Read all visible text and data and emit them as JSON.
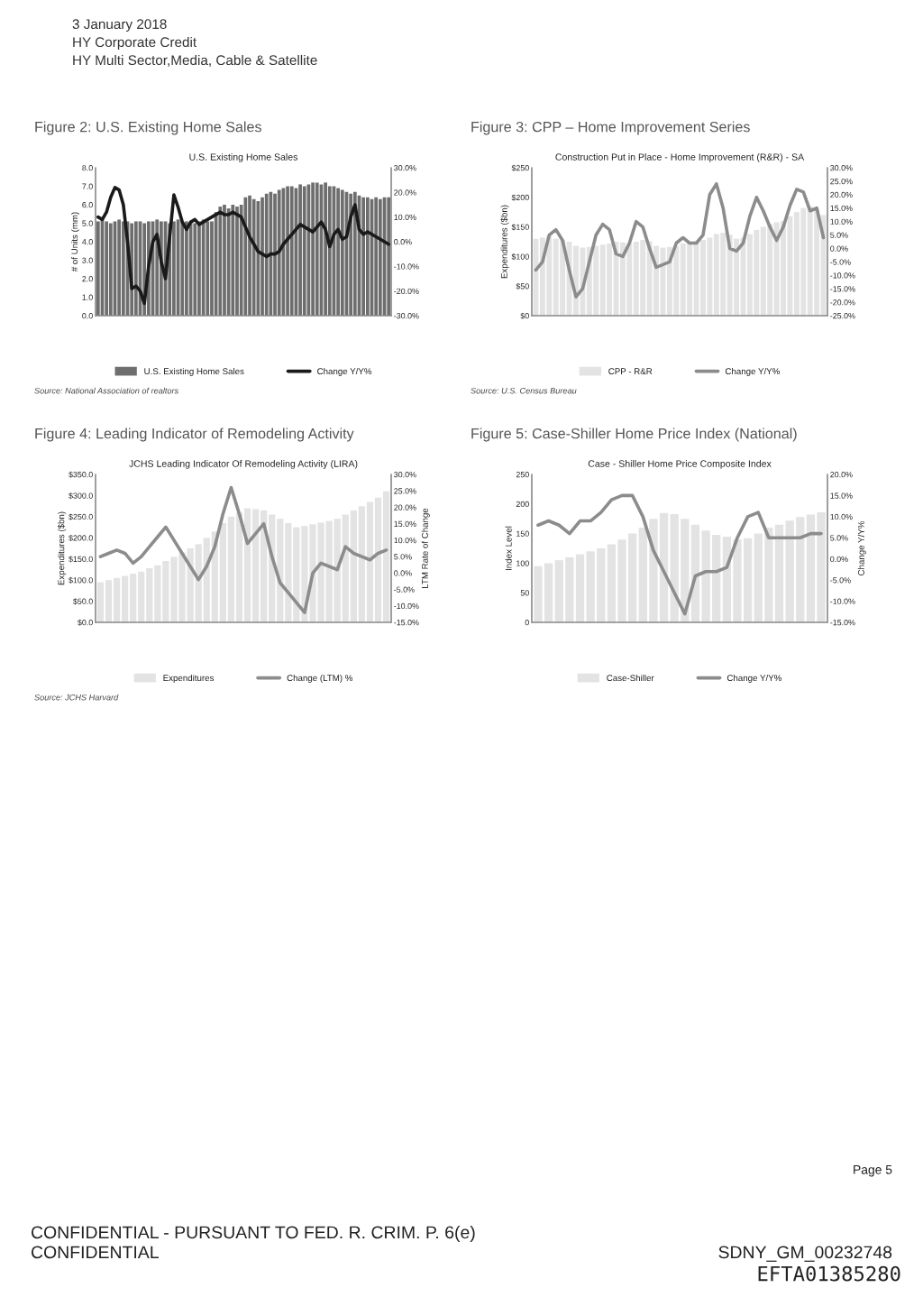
{
  "chart_data": [
    {
      "type": "other",
      "annotations": [
        "3 January 2018",
        "HY Corporate Credit",
        "HY Multi Sector,Media, Cable & Satellite"
      ]
    },
    {
      "type": "bar",
      "title": "Figure 2: U.S. Existing Home Sales",
      "subtitle": "U.S. Existing Home Sales",
      "ylabel": "# of Units (mm)",
      "categories": [
        null,
        null,
        null,
        null,
        null,
        null,
        null,
        null,
        null,
        null,
        null,
        null,
        null,
        null,
        null,
        null,
        null,
        null,
        null,
        null,
        null,
        null,
        null,
        null,
        null,
        null,
        null,
        null,
        null,
        null,
        null,
        null,
        null,
        null,
        null,
        null,
        null,
        null,
        null,
        null,
        null,
        null,
        null,
        null,
        null,
        null,
        null,
        null,
        null,
        null,
        null,
        null,
        null,
        null,
        null,
        null,
        null,
        null,
        null,
        null,
        null,
        null,
        null,
        null,
        null,
        null,
        null,
        null,
        null,
        null
      ],
      "series": [
        {
          "name": "U.S. Existing Home Sales",
          "type": "bar",
          "color": "#6e6e6e",
          "values": [
            5.1,
            5.2,
            5.1,
            5.0,
            5.1,
            5.2,
            5.1,
            5.1,
            5.0,
            5.1,
            5.1,
            5.0,
            5.1,
            5.1,
            5.2,
            5.1,
            5.1,
            5.0,
            5.1,
            5.2,
            5.1,
            5.1,
            5.1,
            5.0,
            5.1,
            5.2,
            5.1,
            5.1,
            5.6,
            5.9,
            6.0,
            5.8,
            6.0,
            5.9,
            6.0,
            6.4,
            6.5,
            6.3,
            6.2,
            6.4,
            6.6,
            6.7,
            6.6,
            6.8,
            6.9,
            7.0,
            7.0,
            6.9,
            7.1,
            7.0,
            7.1,
            7.2,
            7.2,
            7.1,
            7.2,
            7.0,
            7.0,
            6.9,
            6.8,
            6.7,
            6.6,
            6.7,
            6.5,
            6.4,
            6.4,
            6.3,
            6.4,
            6.3,
            6.4,
            6.4
          ]
        },
        {
          "name": "Change Y/Y%",
          "type": "line",
          "axis": "y2",
          "color": "#1a1a1a",
          "values": [
            10,
            9,
            12,
            18,
            22,
            21,
            15,
            0,
            -19,
            -18,
            -20,
            -25,
            -10,
            0,
            3,
            -8,
            -15,
            2,
            19,
            14,
            8,
            5,
            8,
            9,
            7,
            8,
            9,
            10,
            11,
            12,
            11,
            11,
            12,
            11,
            10,
            6,
            2,
            -1,
            -4,
            -5,
            -6,
            -5,
            -5,
            -4,
            -1,
            1,
            3,
            5,
            7,
            6,
            5,
            4,
            6,
            8,
            5,
            -2,
            3,
            5,
            1,
            2,
            10,
            15,
            5,
            3,
            4,
            3,
            2,
            1,
            0,
            -1
          ]
        }
      ],
      "ylim": [
        0,
        8
      ],
      "yticks": [
        {
          "value": 0,
          "label": "0.0"
        },
        {
          "value": 1,
          "label": "1.0"
        },
        {
          "value": 2,
          "label": "2.0"
        },
        {
          "value": 3,
          "label": "3.0"
        },
        {
          "value": 4,
          "label": "4.0"
        },
        {
          "value": 5,
          "label": "5.0"
        },
        {
          "value": 6,
          "label": "6.0"
        },
        {
          "value": 7,
          "label": "7.0"
        },
        {
          "value": 8,
          "label": "8.0"
        }
      ],
      "y2lim": [
        -30,
        30
      ],
      "y2ticks": [
        {
          "value": -30,
          "label": "-30.0%"
        },
        {
          "value": -20,
          "label": "-20.0%"
        },
        {
          "value": -10,
          "label": "-10.0%"
        },
        {
          "value": 0,
          "label": "0.0%"
        },
        {
          "value": 10,
          "label": "10.0%"
        },
        {
          "value": 20,
          "label": "20.0%"
        },
        {
          "value": 30,
          "label": "30.0%"
        }
      ],
      "legend": "bottom",
      "annotations": [
        "Source: National Association of realtors"
      ]
    },
    {
      "type": "bar",
      "title": "Figure 3: CPP – Home Improvement Series",
      "subtitle": "Construction Put in Place - Home Improvement (R&R) - SA",
      "ylabel": "Expenditures ($bn)",
      "categories": [
        null,
        null,
        null,
        null,
        null,
        null,
        null,
        null,
        null,
        null,
        null,
        null,
        null,
        null,
        null,
        null,
        null,
        null,
        null,
        null,
        null,
        null,
        null,
        null,
        null,
        null,
        null,
        null,
        null,
        null,
        null,
        null,
        null,
        null,
        null,
        null,
        null,
        null,
        null,
        null,
        null,
        null,
        null,
        null
      ],
      "series": [
        {
          "name": "CPP - R&R",
          "type": "bar",
          "color": "#e3e3e3",
          "values": [
            130,
            132,
            134,
            130,
            128,
            125,
            118,
            115,
            116,
            118,
            120,
            122,
            125,
            124,
            122,
            125,
            128,
            126,
            118,
            115,
            116,
            118,
            122,
            125,
            126,
            128,
            132,
            138,
            140,
            137,
            130,
            132,
            138,
            145,
            150,
            155,
            158,
            160,
            168,
            175,
            182,
            185,
            178,
            170
          ]
        },
        {
          "name": "Change Y/Y%",
          "type": "line",
          "axis": "y2",
          "color": "#8c8c8c",
          "values": [
            -8,
            -5,
            5,
            7,
            3,
            -8,
            -18,
            -15,
            -5,
            5,
            9,
            7,
            -2,
            -3,
            2,
            10,
            8,
            0,
            -7,
            -6,
            -5,
            2,
            4,
            2,
            2,
            5,
            20,
            24,
            15,
            0,
            -1,
            2,
            12,
            19,
            14,
            8,
            3,
            8,
            16,
            22,
            21,
            14,
            15,
            4
          ]
        }
      ],
      "ylim": [
        0,
        250
      ],
      "yticks": [
        {
          "value": 0,
          "label": "$0"
        },
        {
          "value": 50,
          "label": "$50"
        },
        {
          "value": 100,
          "label": "$100"
        },
        {
          "value": 150,
          "label": "$150"
        },
        {
          "value": 200,
          "label": "$200"
        },
        {
          "value": 250,
          "label": "$250"
        }
      ],
      "y2lim": [
        -25,
        30
      ],
      "y2ticks": [
        {
          "value": -25,
          "label": "-25.0%"
        },
        {
          "value": -20,
          "label": "-20.0%"
        },
        {
          "value": -15,
          "label": "-15.0%"
        },
        {
          "value": -10,
          "label": "-10.0%"
        },
        {
          "value": -5,
          "label": "-5.0%"
        },
        {
          "value": 0,
          "label": "0.0%"
        },
        {
          "value": 5,
          "label": "5.0%"
        },
        {
          "value": 10,
          "label": "10.0%"
        },
        {
          "value": 15,
          "label": "15.0%"
        },
        {
          "value": 20,
          "label": "20.0%"
        },
        {
          "value": 25,
          "label": "25.0%"
        },
        {
          "value": 30,
          "label": "30.0%"
        }
      ],
      "legend": "bottom",
      "annotations": [
        "Source: U.S. Census Bureau"
      ]
    },
    {
      "type": "bar",
      "title": "Figure 4: Leading Indicator of Remodeling Activity",
      "subtitle": "JCHS Leading Indicator Of Remodeling Activity (LIRA)",
      "ylabel": "Expenditures ($bn)",
      "y2label": "LTM Rate of Change",
      "categories": [
        null,
        null,
        null,
        null,
        null,
        null,
        null,
        null,
        null,
        null,
        null,
        null,
        null,
        null,
        null,
        null,
        null,
        null,
        null,
        null,
        null,
        null,
        null,
        null,
        null,
        null,
        null,
        null,
        null,
        null,
        null,
        null,
        null,
        null,
        null,
        null
      ],
      "series": [
        {
          "name": "Expenditures",
          "type": "bar",
          "color": "#e3e3e3",
          "values": [
            95,
            100,
            105,
            110,
            115,
            120,
            128,
            135,
            145,
            155,
            165,
            175,
            185,
            200,
            215,
            235,
            250,
            260,
            270,
            268,
            265,
            255,
            245,
            235,
            225,
            228,
            232,
            236,
            240,
            245,
            255,
            265,
            275,
            285,
            295,
            310
          ]
        },
        {
          "name": "Change (LTM) %",
          "type": "line",
          "axis": "y2",
          "color": "#8c8c8c",
          "values": [
            5,
            6,
            7,
            6,
            3,
            5,
            8,
            11,
            14,
            10,
            6,
            2,
            -2,
            2,
            8,
            18,
            26,
            18,
            9,
            12,
            15,
            5,
            -3,
            -6,
            -9,
            -12,
            0,
            3,
            2,
            1,
            8,
            6,
            5,
            4,
            6,
            7
          ]
        }
      ],
      "ylim": [
        0,
        350
      ],
      "yticks": [
        {
          "value": 0,
          "label": "$0.0"
        },
        {
          "value": 50,
          "label": "$50.0"
        },
        {
          "value": 100,
          "label": "$100.0"
        },
        {
          "value": 150,
          "label": "$150.0"
        },
        {
          "value": 200,
          "label": "$200.0"
        },
        {
          "value": 250,
          "label": "$250.0"
        },
        {
          "value": 300,
          "label": "$300.0"
        },
        {
          "value": 350,
          "label": "$350.0"
        }
      ],
      "y2lim": [
        -15,
        30
      ],
      "y2ticks": [
        {
          "value": -15,
          "label": "-15.0%"
        },
        {
          "value": -10,
          "label": "-10.0%"
        },
        {
          "value": -5,
          "label": "-5.0%"
        },
        {
          "value": 0,
          "label": "0.0%"
        },
        {
          "value": 5,
          "label": "5.0%"
        },
        {
          "value": 10,
          "label": "10.0%"
        },
        {
          "value": 15,
          "label": "15.0%"
        },
        {
          "value": 20,
          "label": "20.0%"
        },
        {
          "value": 25,
          "label": "25.0%"
        },
        {
          "value": 30,
          "label": "30.0%"
        }
      ],
      "legend": "bottom",
      "annotations": [
        "Source: JCHS Harvard"
      ]
    },
    {
      "type": "bar",
      "title": "Figure 5: Case-Shiller Home Price Index (National)",
      "subtitle": "Case - Shiller Home Price Composite Index",
      "ylabel": "Index Level",
      "y2label": "Change Y/Y%",
      "categories": [
        null,
        null,
        null,
        null,
        null,
        null,
        null,
        null,
        null,
        null,
        null,
        null,
        null,
        null,
        null,
        null,
        null,
        null,
        null,
        null,
        null,
        null,
        null,
        null,
        null,
        null,
        null,
        null
      ],
      "series": [
        {
          "name": "Case-Shiller",
          "type": "bar",
          "color": "#e3e3e3",
          "values": [
            95,
            100,
            105,
            110,
            115,
            120,
            125,
            132,
            140,
            150,
            160,
            175,
            185,
            183,
            175,
            165,
            155,
            148,
            145,
            140,
            142,
            150,
            160,
            165,
            172,
            178,
            182,
            186
          ]
        },
        {
          "name": "Change Y/Y%",
          "type": "line",
          "axis": "y2",
          "color": "#8c8c8c",
          "values": [
            8,
            9,
            8,
            6,
            9,
            9,
            11,
            14,
            15,
            15,
            10,
            2,
            -3,
            -8,
            -13,
            -4,
            -3,
            -3,
            -2,
            5,
            10,
            11,
            5,
            5,
            5,
            5,
            6,
            6
          ]
        }
      ],
      "ylim": [
        0,
        250
      ],
      "yticks": [
        0,
        50,
        100,
        150,
        200,
        250
      ],
      "y2lim": [
        -15,
        20
      ],
      "y2ticks": [
        {
          "value": -15,
          "label": "-15.0%"
        },
        {
          "value": -10,
          "label": "-10.0%"
        },
        {
          "value": -5,
          "label": "-5.0%"
        },
        {
          "value": 0,
          "label": "0.0%"
        },
        {
          "value": 5,
          "label": "5.0%"
        },
        {
          "value": 10,
          "label": "10.0%"
        },
        {
          "value": 15,
          "label": "15.0%"
        },
        {
          "value": 20,
          "label": "20.0%"
        }
      ],
      "legend": "bottom"
    },
    {
      "type": "other",
      "annotations": [
        "Page 5",
        "CONFIDENTIAL - PURSUANT TO FED. R. CRIM. P. 6(e)",
        "CONFIDENTIAL",
        "SDNY_GM_00232748",
        "EFTA01385280"
      ]
    }
  ]
}
